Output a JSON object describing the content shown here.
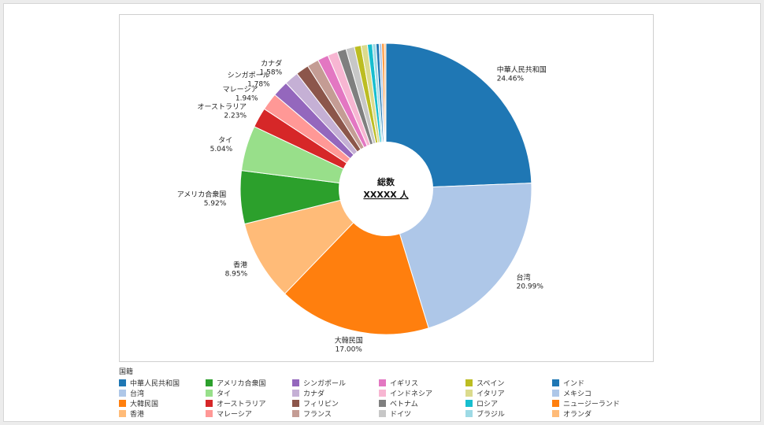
{
  "chart_data": {
    "type": "pie",
    "donut": true,
    "center_label": {
      "line1": "総数",
      "line2": "XXXXX 人"
    },
    "legend_title": "国籍",
    "legend_placement": "bottom",
    "slices": [
      {
        "name": "中華人民共和国",
        "value": 24.46,
        "label": "24.46%",
        "color": "#1f77b4",
        "show_label": true
      },
      {
        "name": "台湾",
        "value": 20.99,
        "label": "20.99%",
        "color": "#aec7e8",
        "show_label": true
      },
      {
        "name": "大韓民国",
        "value": 17.0,
        "label": "17.00%",
        "color": "#ff7f0e",
        "show_label": true
      },
      {
        "name": "香港",
        "value": 8.95,
        "label": "8.95%",
        "color": "#ffbb78",
        "show_label": true
      },
      {
        "name": "アメリカ合衆国",
        "value": 5.92,
        "label": "5.92%",
        "color": "#2ca02c",
        "show_label": true
      },
      {
        "name": "タイ",
        "value": 5.04,
        "label": "5.04%",
        "color": "#98df8a",
        "show_label": true
      },
      {
        "name": "オーストラリア",
        "value": 2.23,
        "label": "2.23%",
        "color": "#d62728",
        "show_label": true
      },
      {
        "name": "マレーシア",
        "value": 1.94,
        "label": "1.94%",
        "color": "#ff9896",
        "show_label": true
      },
      {
        "name": "シンガポール",
        "value": 1.78,
        "label": "1.78%",
        "color": "#9467bd",
        "show_label": true
      },
      {
        "name": "カナダ",
        "value": 1.58,
        "label": "1.58%",
        "color": "#c5b0d5",
        "show_label": true
      },
      {
        "name": "フィリピン",
        "value": 1.45,
        "label": "",
        "color": "#8c564b",
        "show_label": false
      },
      {
        "name": "フランス",
        "value": 1.3,
        "label": "",
        "color": "#c49c94",
        "show_label": false
      },
      {
        "name": "イギリス",
        "value": 1.2,
        "label": "",
        "color": "#e377c2",
        "show_label": false
      },
      {
        "name": "インドネシア",
        "value": 1.1,
        "label": "",
        "color": "#f7b6d2",
        "show_label": false
      },
      {
        "name": "ベトナム",
        "value": 1.0,
        "label": "",
        "color": "#7f7f7f",
        "show_label": false
      },
      {
        "name": "ドイツ",
        "value": 0.95,
        "label": "",
        "color": "#c7c7c7",
        "show_label": false
      },
      {
        "name": "スペイン",
        "value": 0.75,
        "label": "",
        "color": "#bcbd22",
        "show_label": false
      },
      {
        "name": "イタリア",
        "value": 0.7,
        "label": "",
        "color": "#dbdb8d",
        "show_label": false
      },
      {
        "name": "ロシア",
        "value": 0.55,
        "label": "",
        "color": "#17becf",
        "show_label": false
      },
      {
        "name": "ブラジル",
        "value": 0.4,
        "label": "",
        "color": "#9edae5",
        "show_label": false
      },
      {
        "name": "インド",
        "value": 0.35,
        "label": "",
        "color": "#1f77b4",
        "show_label": false
      },
      {
        "name": "メキシコ",
        "value": 0.3,
        "label": "",
        "color": "#aec7e8",
        "show_label": false
      },
      {
        "name": "ニュージーランド",
        "value": 0.25,
        "label": "",
        "color": "#ff7f0e",
        "show_label": false
      },
      {
        "name": "オランダ",
        "value": 0.2,
        "label": "",
        "color": "#ffbb78",
        "show_label": false
      }
    ],
    "legend": [
      {
        "name": "中華人民共和国",
        "color": "#1f77b4"
      },
      {
        "name": "台湾",
        "color": "#aec7e8"
      },
      {
        "name": "大韓民国",
        "color": "#ff7f0e"
      },
      {
        "name": "香港",
        "color": "#ffbb78"
      },
      {
        "name": "アメリカ合衆国",
        "color": "#2ca02c"
      },
      {
        "name": "タイ",
        "color": "#98df8a"
      },
      {
        "name": "オーストラリア",
        "color": "#d62728"
      },
      {
        "name": "マレーシア",
        "color": "#ff9896"
      },
      {
        "name": "シンガポール",
        "color": "#9467bd"
      },
      {
        "name": "カナダ",
        "color": "#c5b0d5"
      },
      {
        "name": "フィリピン",
        "color": "#8c564b"
      },
      {
        "name": "フランス",
        "color": "#c49c94"
      },
      {
        "name": "イギリス",
        "color": "#e377c2"
      },
      {
        "name": "インドネシア",
        "color": "#f7b6d2"
      },
      {
        "name": "ベトナム",
        "color": "#7f7f7f"
      },
      {
        "name": "ドイツ",
        "color": "#c7c7c7"
      },
      {
        "name": "スペイン",
        "color": "#bcbd22"
      },
      {
        "name": "イタリア",
        "color": "#dbdb8d"
      },
      {
        "name": "ロシア",
        "color": "#17becf"
      },
      {
        "name": "ブラジル",
        "color": "#9edae5"
      },
      {
        "name": "インド",
        "color": "#1f77b4"
      },
      {
        "name": "メキシコ",
        "color": "#aec7e8"
      },
      {
        "name": "ニュージーランド",
        "color": "#ff7f0e"
      },
      {
        "name": "オランダ",
        "color": "#ffbb78"
      }
    ]
  }
}
